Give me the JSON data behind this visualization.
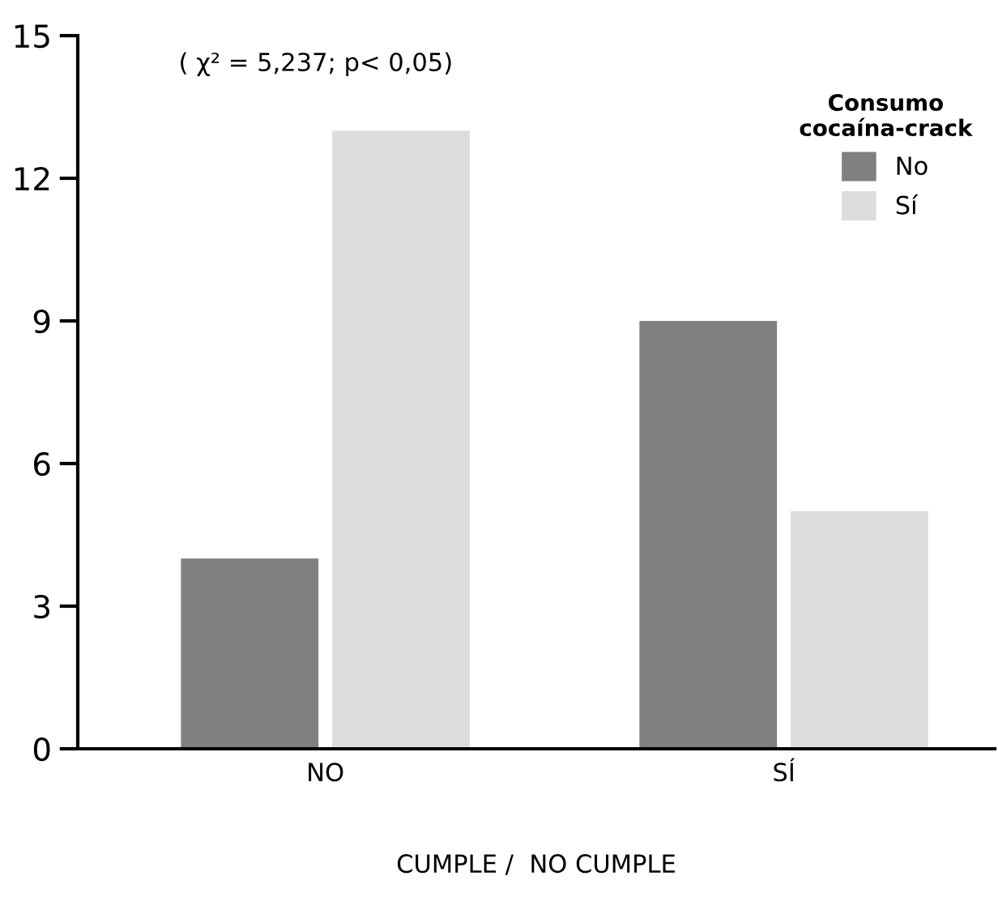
{
  "chart_data": {
    "type": "bar",
    "xlabel": "CUMPLE /  NO CUMPLE",
    "legend_title": "Consumo\ncocaína-crack",
    "annotations": [
      "( χ² = 5,237; p< 0,05)"
    ],
    "categories": [
      "NO",
      "SÍ"
    ],
    "series": [
      {
        "name": "No",
        "color": "#808083",
        "values": [
          4,
          9
        ]
      },
      {
        "name": "Sí",
        "color": "#dcdcde",
        "values": [
          13,
          5
        ]
      }
    ],
    "ylim": [
      0,
      15
    ],
    "yticks": [
      0,
      3,
      6,
      9,
      12,
      15
    ],
    "grid": false,
    "legend": "top right"
  }
}
